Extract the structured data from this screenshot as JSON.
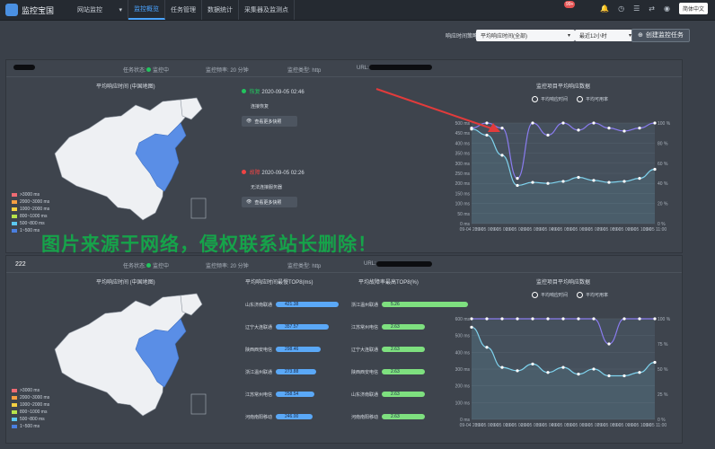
{
  "header": {
    "logo_text": "监控宝国",
    "website_menu": "网站监控",
    "nav": [
      "监控概览",
      "任务管理",
      "数据统计",
      "采集器及监测点"
    ],
    "notification_count": "99+",
    "language": "简体中文"
  },
  "toolbar": {
    "time_range_label": "响应时间策略:",
    "metric_value": "平均响应时间(全部)",
    "range_value": "最近12小时",
    "create_button": "创建监控任务"
  },
  "panel1": {
    "title": "",
    "status_label": "任务状态:",
    "status_value": "监控中",
    "freq_label": "监控频率: 20 分钟",
    "type_label": "监控类型: http",
    "url_label": "URL:",
    "map_title": "平均响应时间 (中国地图)",
    "events": [
      {
        "color": "#22c55e",
        "status": "恢复",
        "time": "2020-09-05 02:46",
        "desc": "连接恢复",
        "button": "查看更多快照"
      },
      {
        "color": "#ef4444",
        "status": "故障",
        "time": "2020-09-05 02:26",
        "desc": "无法连接服务器",
        "button": "查看更多快照"
      }
    ],
    "chart": {
      "title": "监控项目平均响应数据",
      "legend": [
        "平均响应时间",
        "平均可用率"
      ]
    }
  },
  "panel2": {
    "title": "222",
    "status_label": "任务状态:",
    "status_value": "监控中",
    "freq_label": "监控频率: 20 分钟",
    "type_label": "监控类型: http",
    "url_label": "URL:",
    "map_title": "平均响应时间 (中国地图)",
    "top_slow_title": "平均响应时间最慢TOP8(ms)",
    "top_fail_title": "平均故障率最高TOP8(%)",
    "slow": [
      {
        "name": "山东济南联通",
        "value": "421.38"
      },
      {
        "name": "辽宁大连联通",
        "value": "357.57"
      },
      {
        "name": "陕西西安电信",
        "value": "298.46"
      },
      {
        "name": "浙江温州联通",
        "value": "273.88"
      },
      {
        "name": "江苏常州电信",
        "value": "258.54"
      },
      {
        "name": "河南南阳移动",
        "value": "246.00"
      }
    ],
    "fail": [
      {
        "name": "浙江温州联通",
        "value": "5.26"
      },
      {
        "name": "江苏常州电信",
        "value": "2.63"
      },
      {
        "name": "辽宁大连联通",
        "value": "2.63"
      },
      {
        "name": "陕西西安电信",
        "value": "2.63"
      },
      {
        "name": "山东济南联通",
        "value": "2.63"
      },
      {
        "name": "河南南阳移动",
        "value": "2.63"
      }
    ],
    "chart": {
      "title": "监控项目平均响应数据",
      "legend": [
        "平均响应时间",
        "平均可用率"
      ]
    }
  },
  "map_legend": [
    {
      "label": ">3000 ms",
      "color": "#ef6b73"
    },
    {
      "label": "2000~3000 ms",
      "color": "#f59e42"
    },
    {
      "label": "1000~2000 ms",
      "color": "#f5d142"
    },
    {
      "label": "800~1000 ms",
      "color": "#b7e34a"
    },
    {
      "label": "500~800 ms",
      "color": "#5cc8f0"
    },
    {
      "label": "1~500 ms",
      "color": "#4a7fe0"
    }
  ],
  "watermark": "图片来源于网络，侵权联系站长删除！",
  "chart_data": [
    {
      "type": "line",
      "x": [
        "09-04 23:00",
        "09-05 00:00",
        "09-05 01:00",
        "09-05 02:00",
        "09-05 03:00",
        "09-05 04:00",
        "09-05 05:00",
        "09-05 06:00",
        "09-05 07:00",
        "09-05 08:00",
        "09-05 09:00",
        "09-05 10:00",
        "09-05 11:00"
      ],
      "y_left_ticks": [
        "0 ms",
        "50 ms",
        "100 ms",
        "150 ms",
        "200 ms",
        "250 ms",
        "300 ms",
        "350 ms",
        "400 ms",
        "450 ms",
        "500 ms"
      ],
      "y_right_ticks": [
        "0 %",
        "20 %",
        "40 %",
        "60 %",
        "80 %",
        "100 %"
      ],
      "series": [
        {
          "name": "平均响应时间",
          "axis": "left",
          "values": [
            470,
            440,
            340,
            190,
            205,
            200,
            210,
            230,
            215,
            205,
            210,
            225,
            270
          ]
        },
        {
          "name": "平均可用率",
          "axis": "right",
          "values": [
            95,
            100,
            95,
            45,
            100,
            88,
            100,
            93,
            100,
            95,
            92,
            95,
            100
          ]
        }
      ],
      "ylim_left": [
        0,
        500
      ],
      "ylim_right": [
        0,
        100
      ]
    },
    {
      "type": "line",
      "x": [
        "09-04 23:00",
        "09-05 00:00",
        "09-05 01:00",
        "09-05 02:00",
        "09-05 03:00",
        "09-05 04:00",
        "09-05 05:00",
        "09-05 06:00",
        "09-05 07:00",
        "09-05 08:00",
        "09-05 09:00",
        "09-05 10:00",
        "09-05 11:00"
      ],
      "y_left_ticks": [
        "0 ms",
        "100 ms",
        "200 ms",
        "300 ms",
        "400 ms",
        "500 ms",
        "600 ms"
      ],
      "y_right_ticks": [
        "0 %",
        "25 %",
        "50 %",
        "75 %",
        "100 %"
      ],
      "series": [
        {
          "name": "平均响应时间",
          "axis": "left",
          "values": [
            550,
            430,
            310,
            290,
            330,
            280,
            310,
            270,
            300,
            260,
            260,
            280,
            340
          ]
        },
        {
          "name": "平均可用率",
          "axis": "right",
          "values": [
            100,
            100,
            100,
            100,
            100,
            100,
            100,
            100,
            100,
            75,
            100,
            100,
            100
          ]
        }
      ],
      "ylim_left": [
        0,
        600
      ],
      "ylim_right": [
        0,
        100
      ]
    }
  ]
}
